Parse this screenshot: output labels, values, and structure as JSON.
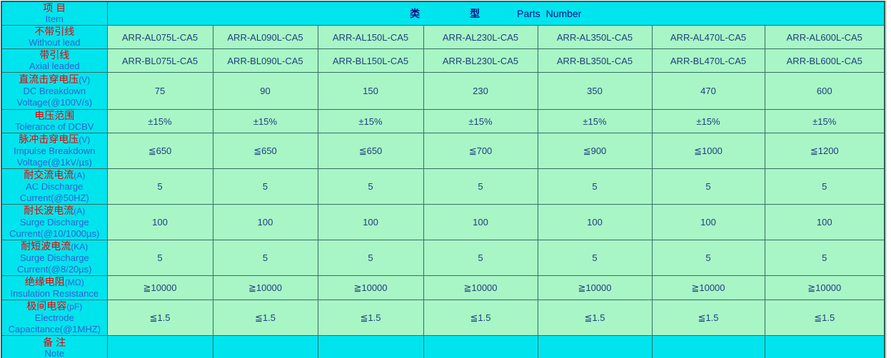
{
  "table": {
    "header": {
      "item_zh": "项 目",
      "item_en": "Item",
      "type_zh_1": "类",
      "type_zh_2": "型",
      "type_en": "Parts  Number"
    },
    "rows": [
      {
        "key": "without-lead",
        "zh": "不带引线",
        "unit": "",
        "en": [
          "Without lead"
        ],
        "values": [
          "ARR-AL075L-CA5",
          "ARR-AL090L-CA5",
          "ARR-AL150L-CA5",
          "ARR-AL230L-CA5",
          "ARR-AL350L-CA5",
          "ARR-AL470L-CA5",
          "ARR-AL600L-CA5"
        ]
      },
      {
        "key": "axial-leaded",
        "zh": "带引线",
        "unit": "",
        "en": [
          "Axial leaded"
        ],
        "values": [
          "ARR-BL075L-CA5",
          "ARR-BL090L-CA5",
          "ARR-BL150L-CA5",
          "ARR-BL230L-CA5",
          "ARR-BL350L-CA5",
          "ARR-BL470L-CA5",
          "ARR-BL600L-CA5"
        ]
      },
      {
        "key": "dc-breakdown-voltage",
        "zh": "直流击穿电压",
        "unit": "(V)",
        "en": [
          "DC Breakdown",
          "Voltage(@100V/s)"
        ],
        "values": [
          "75",
          "90",
          "150",
          "230",
          "350",
          "470",
          "600"
        ]
      },
      {
        "key": "tolerance-of-dcbv",
        "zh": "电压范围",
        "unit": "",
        "en": [
          "Tolerance of DCBV"
        ],
        "values": [
          "±15%",
          "±15%",
          "±15%",
          "±15%",
          "±15%",
          "±15%",
          "±15%"
        ]
      },
      {
        "key": "impulse-breakdown-voltage",
        "zh": "脉冲击穿电压",
        "unit": "(V)",
        "en": [
          "Impulse Breakdown",
          "Voltage(@1kV/µs)"
        ],
        "values": [
          "≦650",
          "≦650",
          "≦650",
          "≦700",
          "≦900",
          "≦1000",
          "≦1200"
        ]
      },
      {
        "key": "ac-discharge-current",
        "zh": "耐交流电流",
        "unit": "(A)",
        "en": [
          "AC Discharge",
          "Current(@50HZ)"
        ],
        "values": [
          "5",
          "5",
          "5",
          "5",
          "5",
          "5",
          "5"
        ]
      },
      {
        "key": "surge-discharge-current-long-wave",
        "zh": "耐长波电流",
        "unit": "(A)",
        "en": [
          "Surge Discharge",
          "Current(@10/1000µs)"
        ],
        "values": [
          "100",
          "100",
          "100",
          "100",
          "100",
          "100",
          "100"
        ]
      },
      {
        "key": "surge-discharge-current-short-wave",
        "zh": "耐短波电流",
        "unit": "(KA)",
        "en": [
          "Surge Discharge",
          "Current(@8/20µs)"
        ],
        "values": [
          "5",
          "5",
          "5",
          "5",
          "5",
          "5",
          "5"
        ]
      },
      {
        "key": "insulation-resistance",
        "zh": "绝缘电阻",
        "unit": "(MΩ)",
        "en": [
          "Insulation Resistance"
        ],
        "values": [
          "≧10000",
          "≧10000",
          "≧10000",
          "≧10000",
          "≧10000",
          "≧10000",
          "≧10000"
        ]
      },
      {
        "key": "electrode-capacitance",
        "zh": "极间电容",
        "unit": "(pF)",
        "en": [
          "Electrode",
          "Capacitance(@1MHZ)"
        ],
        "values": [
          "≦1.5",
          "≦1.5",
          "≦1.5",
          "≦1.5",
          "≦1.5",
          "≦1.5",
          "≦1.5"
        ]
      },
      {
        "key": "note",
        "zh": "备 注",
        "unit": "",
        "en": [
          "Note"
        ],
        "values": [
          "",
          "",
          "",
          "",
          "",
          "",
          ""
        ]
      }
    ],
    "colors": {
      "header_bg": "#00e4ee",
      "cell_bg": "#a8f6c6",
      "zh_text": "#ee0000",
      "en_text": "#3061cf",
      "value_text": "#1e3f7c",
      "parts_header_text": "#000d85",
      "grid": "#356e64"
    }
  }
}
